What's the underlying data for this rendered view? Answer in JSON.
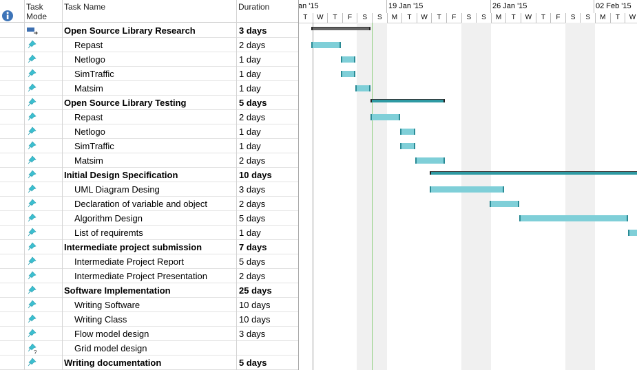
{
  "header": {
    "task_mode": "Task Mode",
    "task_name": "Task Name",
    "duration": "Duration"
  },
  "timeline": {
    "weeks": [
      "an '15",
      "19 Jan '15",
      "26 Jan '15",
      "02 Feb '15"
    ],
    "days": [
      "T",
      "W",
      "T",
      "F",
      "S",
      "S",
      "M",
      "T",
      "W",
      "T",
      "F",
      "S",
      "S",
      "M",
      "T",
      "W",
      "T",
      "F",
      "S",
      "S",
      "M",
      "T",
      "W"
    ]
  },
  "tasks": [
    {
      "name": "Open Source Library Research",
      "duration": "3 days",
      "summary": true,
      "mode": "auto"
    },
    {
      "name": "Repast",
      "duration": "2 days",
      "summary": false,
      "mode": "manual"
    },
    {
      "name": "Netlogo",
      "duration": "1 day",
      "summary": false,
      "mode": "manual"
    },
    {
      "name": "SimTraffic",
      "duration": "1 day",
      "summary": false,
      "mode": "manual"
    },
    {
      "name": "Matsim",
      "duration": "1 day",
      "summary": false,
      "mode": "manual"
    },
    {
      "name": "Open Source Library Testing",
      "duration": "5 days",
      "summary": true,
      "mode": "manual"
    },
    {
      "name": "Repast",
      "duration": "2 days",
      "summary": false,
      "mode": "manual"
    },
    {
      "name": "Netlogo",
      "duration": "1 day",
      "summary": false,
      "mode": "manual"
    },
    {
      "name": "SimTraffic",
      "duration": "1 day",
      "summary": false,
      "mode": "manual"
    },
    {
      "name": "Matsim",
      "duration": "2 days",
      "summary": false,
      "mode": "manual"
    },
    {
      "name": "Initial Design Specification",
      "duration": "10 days",
      "summary": true,
      "mode": "manual"
    },
    {
      "name": "UML Diagram Desing",
      "duration": "3 days",
      "summary": false,
      "mode": "manual"
    },
    {
      "name": "Declaration of variable and object",
      "duration": "2 days",
      "summary": false,
      "mode": "manual"
    },
    {
      "name": "Algorithm Design",
      "duration": "5 days",
      "summary": false,
      "mode": "manual"
    },
    {
      "name": "List of requiremts",
      "duration": "1 day",
      "summary": false,
      "mode": "manual"
    },
    {
      "name": "Intermediate project submission",
      "duration": "7 days",
      "summary": true,
      "mode": "manual"
    },
    {
      "name": "Intermediate Project Report",
      "duration": "5 days",
      "summary": false,
      "mode": "manual"
    },
    {
      "name": "Intermediate Project Presentation",
      "duration": "2 days",
      "summary": false,
      "mode": "manual"
    },
    {
      "name": "Software Implementation",
      "duration": "25 days",
      "summary": true,
      "mode": "manual"
    },
    {
      "name": "Writing Software",
      "duration": "10 days",
      "summary": false,
      "mode": "manual"
    },
    {
      "name": "Writing Class",
      "duration": "10 days",
      "summary": false,
      "mode": "manual"
    },
    {
      "name": "Flow model design",
      "duration": "3 days",
      "summary": false,
      "mode": "manual"
    },
    {
      "name": "Grid model design",
      "duration": "",
      "summary": false,
      "mode": "manual-question"
    },
    {
      "name": "Writing documentation",
      "duration": "5 days",
      "summary": true,
      "mode": "manual"
    }
  ],
  "colors": {
    "task_bar": "#7fcfd8",
    "task_bar_edge": "#2a8a94",
    "summary_bar": "#555555",
    "progress": "#2e9aa3",
    "pin": "#3cbfd0"
  }
}
